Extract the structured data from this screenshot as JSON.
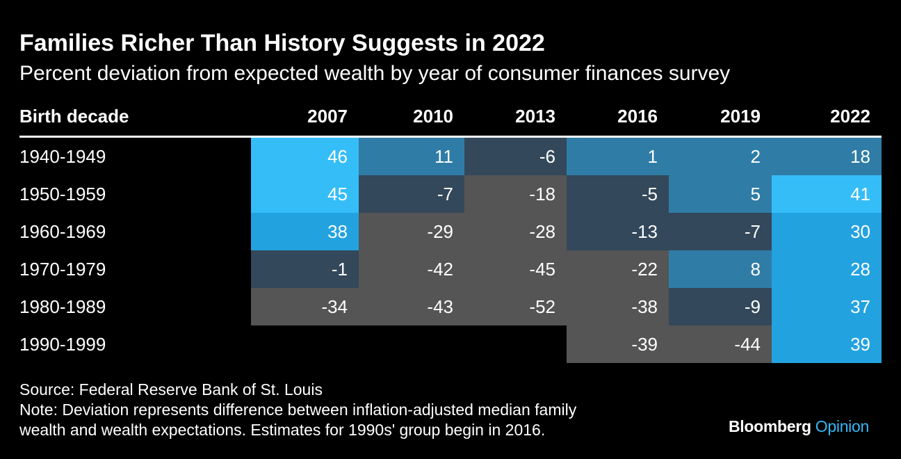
{
  "title": "Families Richer Than History Suggests in 2022",
  "subtitle": "Percent deviation from expected wealth by year of consumer finances survey",
  "chart_data": {
    "type": "table",
    "row_header": "Birth decade",
    "columns": [
      "2007",
      "2010",
      "2013",
      "2016",
      "2019",
      "2022"
    ],
    "rows": [
      {
        "label": "1940-1949",
        "values": [
          46,
          11,
          -6,
          1,
          2,
          18
        ]
      },
      {
        "label": "1950-1959",
        "values": [
          45,
          -7,
          -18,
          -5,
          5,
          41
        ]
      },
      {
        "label": "1960-1969",
        "values": [
          38,
          -29,
          -28,
          -13,
          -7,
          30
        ]
      },
      {
        "label": "1970-1979",
        "values": [
          -1,
          -42,
          -45,
          -22,
          8,
          28
        ]
      },
      {
        "label": "1980-1989",
        "values": [
          -34,
          -43,
          -52,
          -38,
          -9,
          37
        ]
      },
      {
        "label": "1990-1999",
        "values": [
          null,
          null,
          null,
          -39,
          -44,
          39
        ]
      }
    ]
  },
  "colors": {
    "background": "#000000",
    "high_positive": "#35bdf8",
    "positive": "#23a2e0",
    "low_positive": "#2f7da6",
    "slightly_negative": "#33485a",
    "negative": "#555555"
  },
  "footer": {
    "source": "Source: Federal Reserve Bank of St. Louis",
    "note_line1": "Note: Deviation represents difference between inflation-adjusted median family",
    "note_line2": "wealth and wealth expectations. Estimates for 1990s' group begin in 2016."
  },
  "brand": {
    "name": "Bloomberg",
    "suffix": "Opinion"
  }
}
